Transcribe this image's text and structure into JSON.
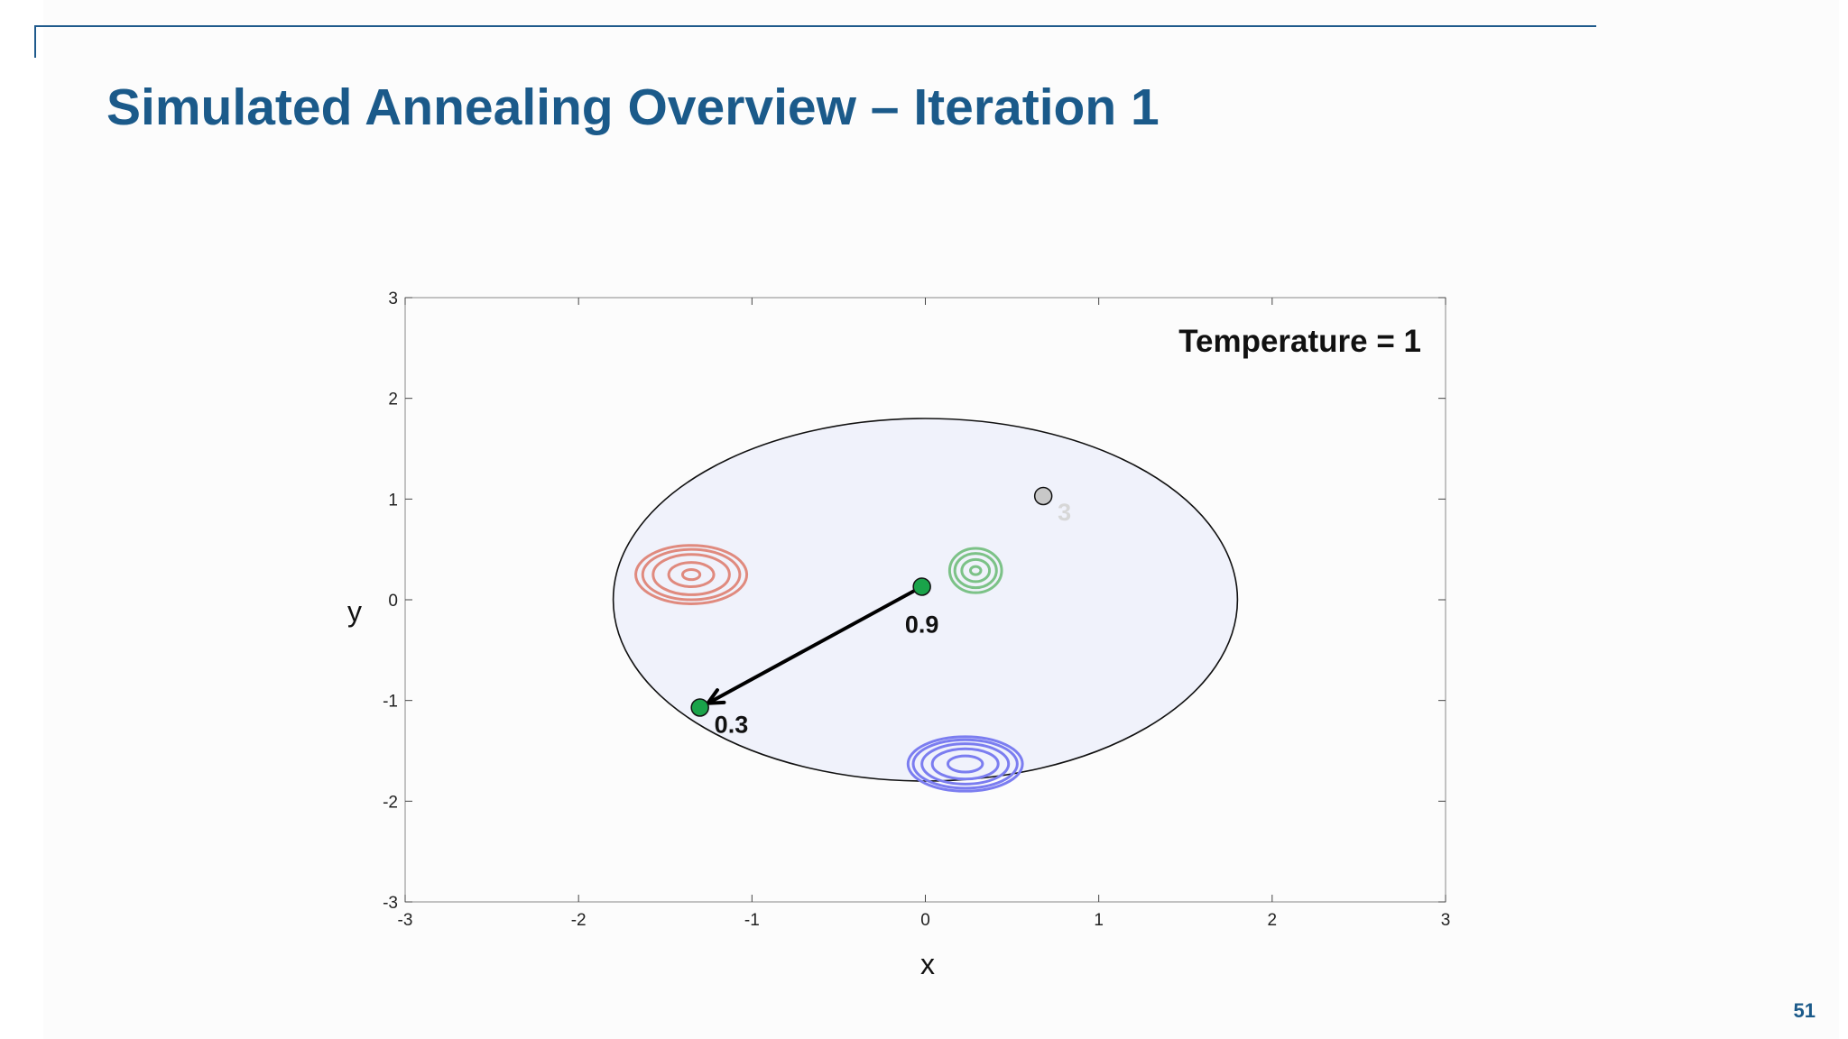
{
  "slide": {
    "title": "Simulated Annealing Overview – Iteration 1",
    "page_number": "51"
  },
  "colors": {
    "title": "#1b5a8a",
    "rule": "#1f5a8c",
    "accepted_point": "#1aa34a",
    "rejected_point": "#c8c8c8",
    "arrow": "#000000",
    "region_fill": "#f0f2fb"
  },
  "chart_data": {
    "type": "scatter",
    "xlabel": "x",
    "ylabel": "y",
    "xlim": [
      -3,
      3
    ],
    "ylim": [
      -3,
      3
    ],
    "xticks": [
      -3,
      -2,
      -1,
      0,
      1,
      2,
      3
    ],
    "yticks": [
      -3,
      -2,
      -1,
      0,
      1,
      2,
      3
    ],
    "grid": false,
    "annotation": "Temperature = 1",
    "search_region": {
      "center": [
        0,
        0
      ],
      "radius": 1.8
    },
    "points": [
      {
        "x": -0.02,
        "y": 0.13,
        "label": "0.9",
        "status": "current"
      },
      {
        "x": -1.3,
        "y": -1.07,
        "label": "0.3",
        "status": "accepted"
      },
      {
        "x": 0.68,
        "y": 1.03,
        "label": "3",
        "status": "rejected"
      }
    ],
    "move": {
      "from": [
        -0.02,
        0.13
      ],
      "to": [
        -1.3,
        -1.07
      ]
    },
    "contours": [
      {
        "name": "red",
        "color": "#e08a7e",
        "center": [
          -1.35,
          0.25
        ],
        "radii": [
          [
            0.05,
            0.05
          ],
          [
            0.13,
            0.12
          ],
          [
            0.22,
            0.2
          ],
          [
            0.28,
            0.25
          ],
          [
            0.32,
            0.29
          ]
        ]
      },
      {
        "name": "green",
        "color": "#7cc287",
        "center": [
          0.29,
          0.29
        ],
        "radii": [
          [
            0.03,
            0.04
          ],
          [
            0.08,
            0.11
          ],
          [
            0.12,
            0.17
          ],
          [
            0.15,
            0.22
          ]
        ]
      },
      {
        "name": "blue",
        "color": "#7b7df0",
        "center": [
          0.23,
          -1.63
        ],
        "radii": [
          [
            0.1,
            0.08
          ],
          [
            0.19,
            0.15
          ],
          [
            0.25,
            0.2
          ],
          [
            0.3,
            0.24
          ],
          [
            0.33,
            0.27
          ]
        ]
      }
    ]
  }
}
